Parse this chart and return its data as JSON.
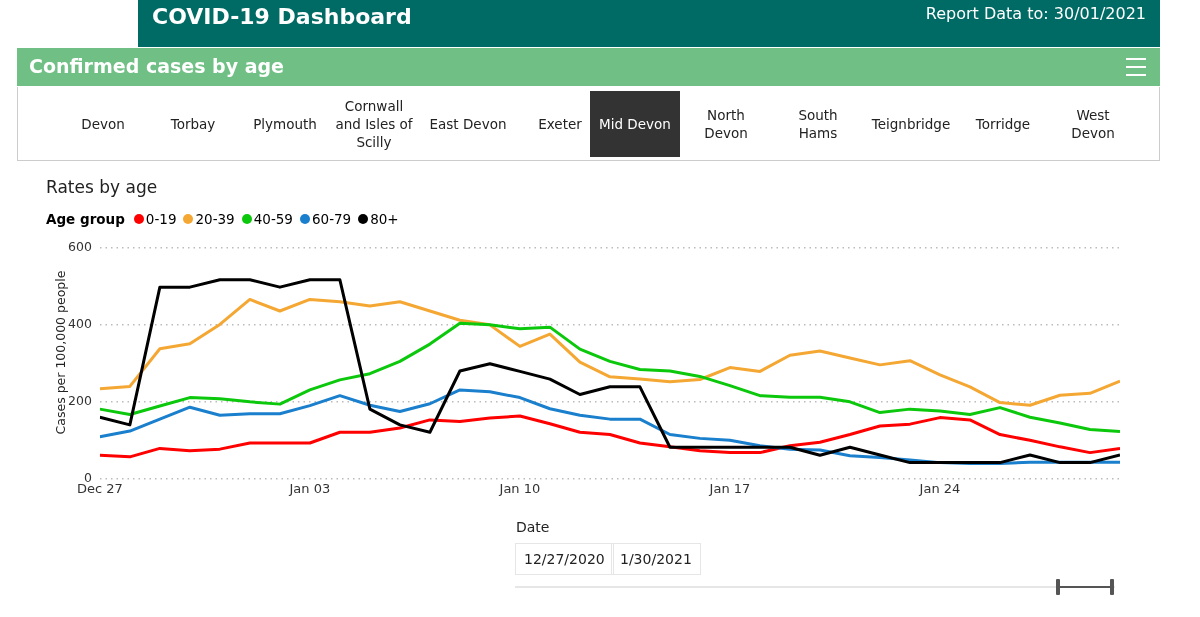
{
  "chart_data": {
    "type": "line",
    "title": "Rates by age",
    "ylabel": "Cases per 100,000 people",
    "legend_title": "Age group",
    "legend": "top left",
    "grid": "y",
    "line_style": "solid",
    "marker": "none",
    "annotations": [
      "COVID-19 Dashboard",
      "Report Data to:  30/01/2021",
      "Confirmed cases by age",
      "Devon",
      "Torbay",
      "Plymouth",
      "Cornwall and Isles of Scilly",
      "East Devon",
      "Exeter",
      "Mid Devon",
      "North Devon",
      "South Hams",
      "Teignbridge",
      "Torridge",
      "West Devon",
      "Date",
      "12/27/2020",
      "1/30/2021"
    ],
    "x": [
      "2020-12-27",
      "2020-12-28",
      "2020-12-29",
      "2020-12-30",
      "2020-12-31",
      "2021-01-01",
      "2021-01-02",
      "2021-01-03",
      "2021-01-04",
      "2021-01-05",
      "2021-01-06",
      "2021-01-07",
      "2021-01-08",
      "2021-01-09",
      "2021-01-10",
      "2021-01-11",
      "2021-01-12",
      "2021-01-13",
      "2021-01-14",
      "2021-01-15",
      "2021-01-16",
      "2021-01-17",
      "2021-01-18",
      "2021-01-19",
      "2021-01-20",
      "2021-01-21",
      "2021-01-22",
      "2021-01-23",
      "2021-01-24",
      "2021-01-25",
      "2021-01-26",
      "2021-01-27",
      "2021-01-28",
      "2021-01-29",
      "2021-01-30"
    ],
    "xlim": [
      "2020-12-27",
      "2021-01-30"
    ],
    "xticks": [
      {
        "value": "2020-12-27",
        "label": "Dec 27"
      },
      {
        "value": "2021-01-03",
        "label": "Jan 03"
      },
      {
        "value": "2021-01-10",
        "label": "Jan 10"
      },
      {
        "value": "2021-01-17",
        "label": "Jan 17"
      },
      {
        "value": "2021-01-24",
        "label": "Jan 24"
      }
    ],
    "ylim": [
      0,
      600
    ],
    "yticks": [
      0,
      200,
      400,
      600
    ],
    "series": [
      {
        "name": "0-19",
        "color": "#ff0000",
        "values": [
          60,
          56,
          78,
          72,
          76,
          92,
          92,
          92,
          120,
          120,
          131,
          152,
          148,
          157,
          162,
          142,
          120,
          114,
          92,
          82,
          72,
          67,
          67,
          85,
          94,
          114,
          136,
          141,
          158,
          152,
          114,
          99,
          82,
          67,
          78
        ]
      },
      {
        "name": "20-39",
        "color": "#f5a733",
        "values": [
          233,
          239,
          337,
          350,
          400,
          465,
          435,
          465,
          459,
          448,
          459,
          435,
          411,
          399,
          343,
          375,
          302,
          264,
          258,
          251,
          257,
          288,
          278,
          320,
          331,
          313,
          295,
          306,
          269,
          238,
          197,
          190,
          216,
          221,
          253
        ]
      },
      {
        "name": "40-59",
        "color": "#0cc80c",
        "values": [
          180,
          166,
          188,
          210,
          207,
          199,
          193,
          230,
          256,
          272,
          304,
          349,
          403,
          399,
          389,
          393,
          336,
          304,
          283,
          279,
          265,
          241,
          215,
          211,
          211,
          199,
          171,
          180,
          175,
          166,
          184,
          159,
          144,
          127,
          122
        ]
      },
      {
        "name": "60-79",
        "color": "#1a7fcc",
        "values": [
          108,
          123,
          154,
          185,
          164,
          168,
          168,
          189,
          215,
          190,
          174,
          194,
          230,
          225,
          210,
          181,
          164,
          154,
          154,
          114,
          104,
          99,
          85,
          76,
          74,
          59,
          54,
          48,
          41,
          39,
          39,
          42,
          42,
          42,
          42
        ]
      },
      {
        "name": "80+",
        "color": "#000000",
        "values": [
          159,
          139,
          497,
          497,
          516,
          516,
          497,
          516,
          516,
          180,
          139,
          120,
          279,
          298,
          278,
          258,
          218,
          238,
          238,
          81,
          81,
          81,
          81,
          81,
          60,
          81,
          61,
          41,
          41,
          41,
          41,
          61,
          41,
          41,
          61
        ]
      }
    ]
  }
}
